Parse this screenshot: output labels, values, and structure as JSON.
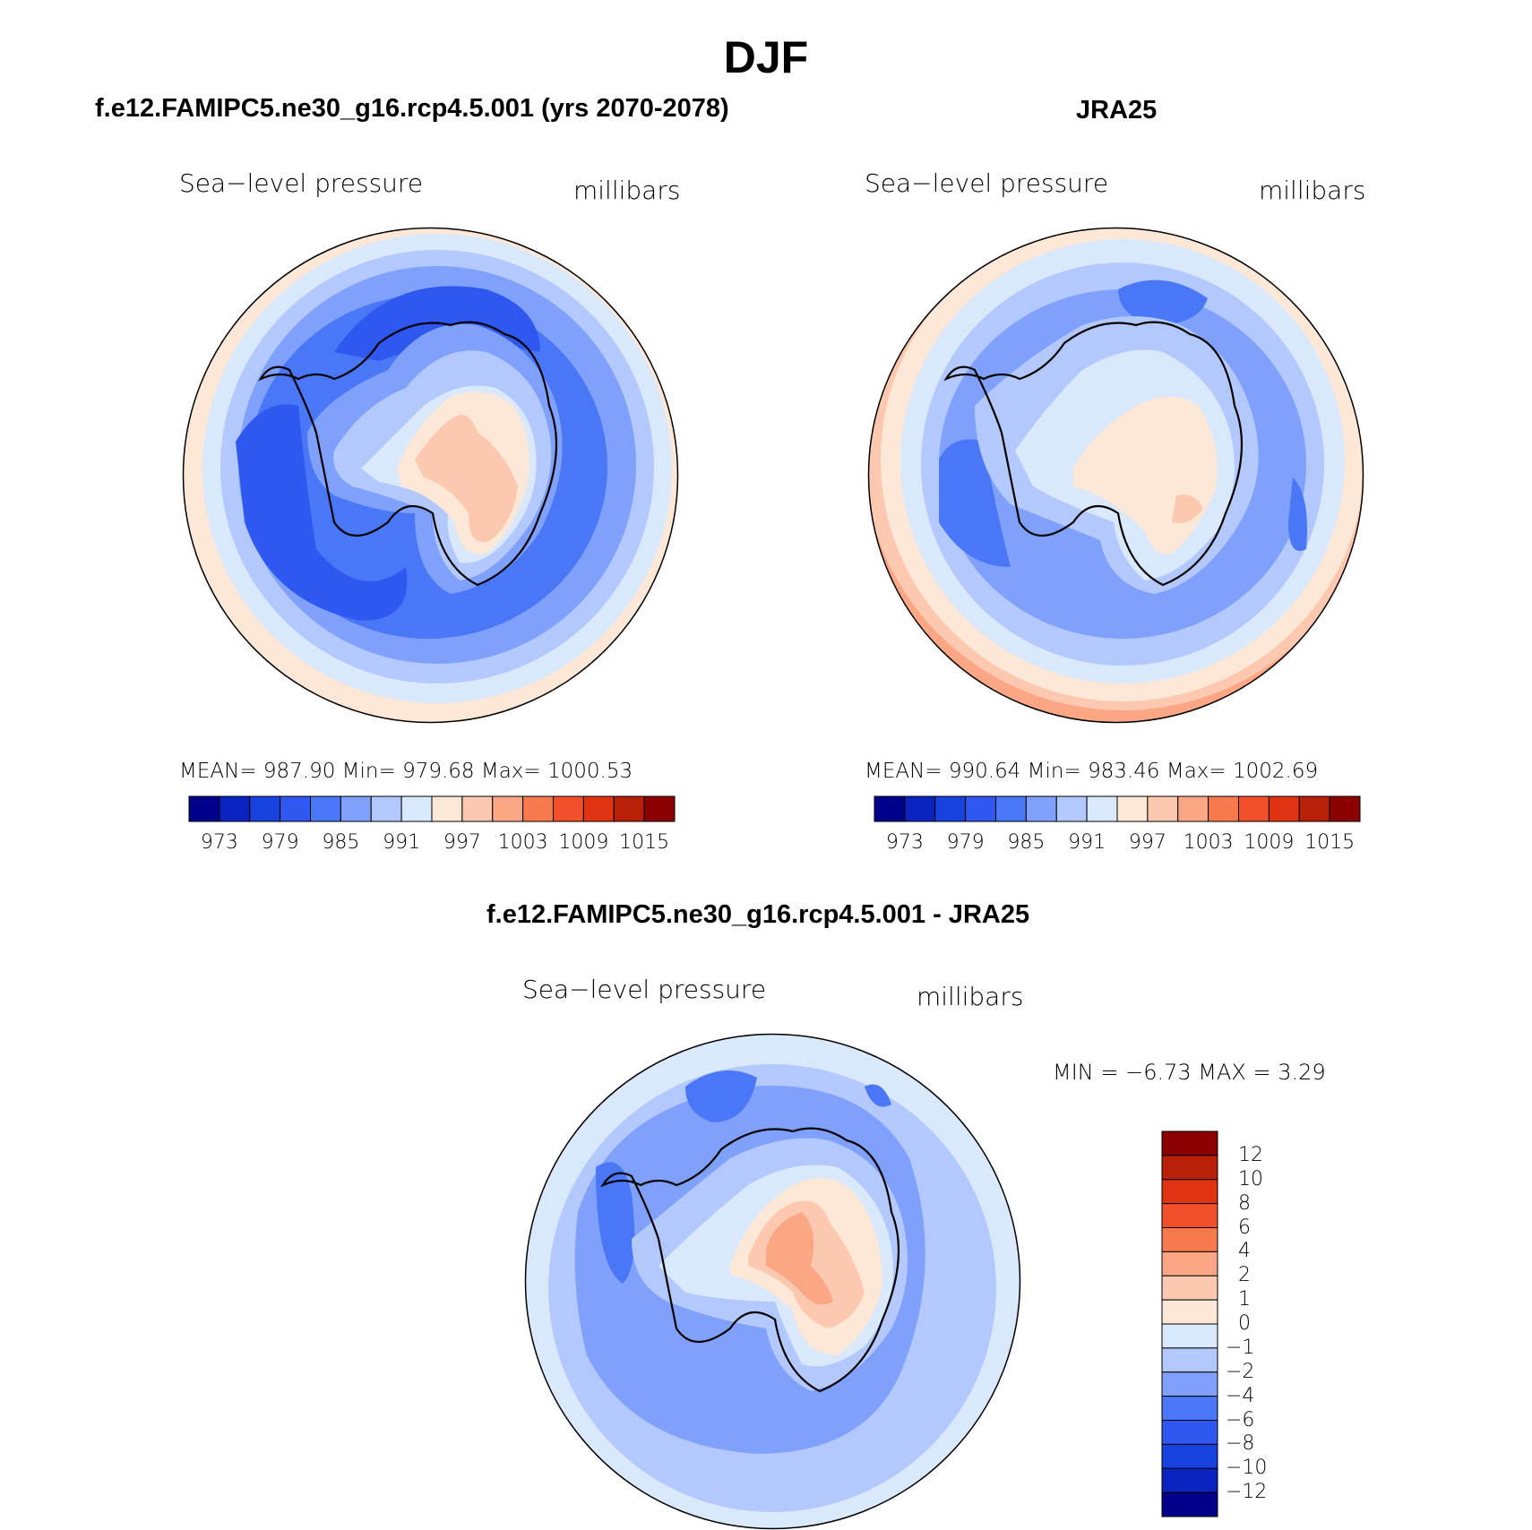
{
  "title": "DJF",
  "panels": [
    {
      "title": "f.e12.FAMIPC5.ne30_g16.rcp4.5.001 (yrs 2070-2078)",
      "variable": "Sea−level pressure",
      "units": "millibars",
      "stats": "MEAN=  987.90    Min=  979.68    Max=  1000.53",
      "levels": [
        "973",
        "979",
        "985",
        "991",
        "997",
        "1003",
        "1009",
        "1015"
      ],
      "colors": [
        "#00008b",
        "#0a23c0",
        "#1742e0",
        "#2f58f0",
        "#4a77f5",
        "#7fa1fb",
        "#b3c8fc",
        "#d9e8fb",
        "#fde8d7",
        "#fdc8b0",
        "#fba786",
        "#f77a4f",
        "#f2502a",
        "#e03311",
        "#b82008",
        "#8b0000"
      ]
    },
    {
      "title": "JRA25",
      "variable": "Sea−level pressure",
      "units": "millibars",
      "stats": "MEAN=  990.64    Min=  983.46    Max=  1002.69",
      "levels": [
        "973",
        "979",
        "985",
        "991",
        "997",
        "1003",
        "1009",
        "1015"
      ],
      "colors": [
        "#00008b",
        "#0a23c0",
        "#1742e0",
        "#2f58f0",
        "#4a77f5",
        "#7fa1fb",
        "#b3c8fc",
        "#d9e8fb",
        "#fde8d7",
        "#fdc8b0",
        "#fba786",
        "#f77a4f",
        "#f2502a",
        "#e03311",
        "#b82008",
        "#8b0000"
      ]
    },
    {
      "title": "f.e12.FAMIPC5.ne30_g16.rcp4.5.001 - JRA25",
      "variable": "Sea−level pressure",
      "units": "millibars",
      "stats": "MIN =   −6.73  MAX =     3.29",
      "levels": [
        "12",
        "10",
        "8",
        "6",
        "4",
        "2",
        "1",
        "0",
        "−1",
        "−2",
        "−4",
        "−6",
        "−8",
        "−10",
        "−12"
      ],
      "colors": [
        "#8b0000",
        "#b82008",
        "#e03311",
        "#f2502a",
        "#f77a4f",
        "#fba786",
        "#fdc8b0",
        "#fde8d7",
        "#d9e8fb",
        "#b3c8fc",
        "#7fa1fb",
        "#4a77f5",
        "#2f58f0",
        "#1742e0",
        "#0a23c0",
        "#00008b"
      ]
    }
  ]
}
